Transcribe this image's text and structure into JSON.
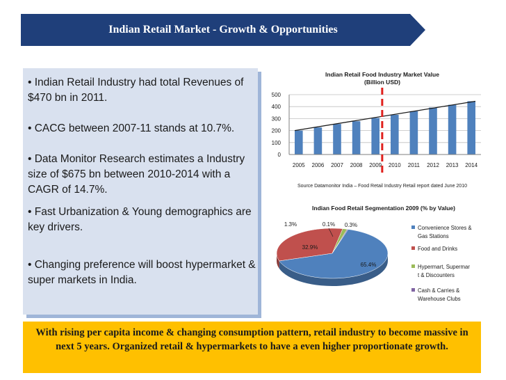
{
  "header": {
    "title": "Indian Retail Market - Growth & Opportunities"
  },
  "bullets": [
    "• Indian Retail Industry had total Revenues of $470 bn in 2011.",
    "• CACG between 2007-11 stands at 10.7%.",
    "•  Data Monitor Research estimates a Industry size of $675 bn between 2010-2014 with a CAGR of 14.7%.",
    "• Fast Urbanization & Young demographics are key drivers.",
    "• Changing preference will boost hypermarket & super markets in India."
  ],
  "callout": "With rising per capita income & changing consumption pattern, retail industry to become massive in next 5 years. Organized retail & hypermarkets to have a even higher proportionate growth.",
  "colors": {
    "banner": "#1f3f7a",
    "panel": "#d9e1ef",
    "callout": "#ffc000",
    "bar": "#4f81bd",
    "marker": "#e0201c"
  },
  "chart_data": [
    {
      "type": "bar",
      "title": "Indian Retail Food Industry Market Value",
      "subtitle": "(Billion USD)",
      "categories": [
        "2005",
        "2006",
        "2007",
        "2008",
        "2009",
        "2010",
        "2011",
        "2012",
        "2013",
        "2014"
      ],
      "values": [
        200,
        226,
        255,
        278,
        305,
        332,
        362,
        392,
        415,
        445
      ],
      "ylim": [
        0,
        500
      ],
      "yticks": [
        "0",
        "100",
        "200",
        "300",
        "400",
        "500"
      ],
      "grid": true,
      "trendline": true,
      "marker_between": [
        "2009",
        "2010"
      ],
      "source": "Source Datamonitor India – Food Retail Industry Retail report dated June 2010"
    },
    {
      "type": "pie",
      "title": "Indian Food Retail Segmentation 2009 (% by Value)",
      "legend_position": "right",
      "slices": [
        {
          "label": "Convenience Stores & Gas Stations",
          "value": 65.4,
          "display": "65.4%",
          "color": "#4f81bd"
        },
        {
          "label": "Food and Drinks",
          "value": 32.9,
          "display": "32.9%",
          "color": "#c0504d"
        },
        {
          "label": "Hypermart, Supermart & Discounters",
          "value": 1.3,
          "display": "1.3%",
          "color": "#9bbb59"
        },
        {
          "label": "Cash & Carries & Warehouse Clubs",
          "value": 0.3,
          "display": "0.3%",
          "color": "#8064a2"
        }
      ],
      "extra_label": "0.1%",
      "legend_lines": [
        [
          "Convenience Stores &",
          "Gas Stations"
        ],
        [
          "Food and Drinks"
        ],
        [
          "Hypermart, Supermar",
          "t & Discounters"
        ],
        [
          "Cash & Carries &",
          "Warehouse Clubs"
        ]
      ]
    }
  ]
}
